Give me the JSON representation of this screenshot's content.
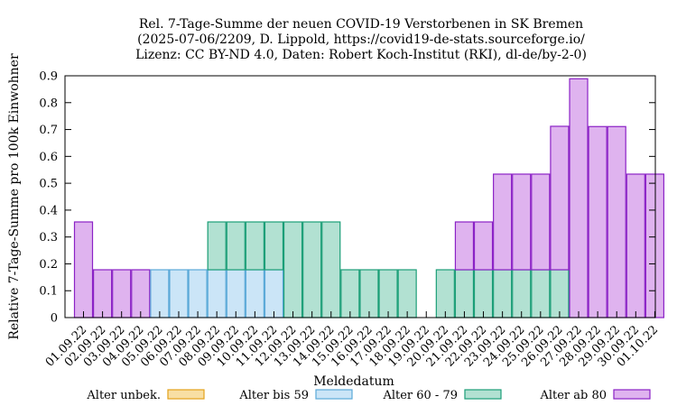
{
  "chart_data": {
    "type": "bar",
    "stacked": true,
    "title_lines": [
      "Rel. 7-Tage-Summe der neuen COVID-19 Verstorbenen in SK Bremen",
      "(2025-07-06/2209, D. Lippold, https://covid19-de-stats.sourceforge.io/",
      "Lizenz: CC BY-ND 4.0, Daten: Robert Koch-Institut (RKI), dl-de/by-2-0)"
    ],
    "xlabel": "Meldedatum",
    "ylabel": "Relative 7-Tage-Summe pro 100k Einwohner",
    "ylim": [
      0,
      0.9
    ],
    "yticks": [
      "0",
      "0.1",
      "0.2",
      "0.3",
      "0.4",
      "0.5",
      "0.6",
      "0.7",
      "0.8",
      "0.9"
    ],
    "categories": [
      "01.09.22",
      "02.09.22",
      "03.09.22",
      "04.09.22",
      "05.09.22",
      "06.09.22",
      "07.09.22",
      "08.09.22",
      "09.09.22",
      "10.09.22",
      "11.09.22",
      "12.09.22",
      "13.09.22",
      "14.09.22",
      "15.09.22",
      "16.09.22",
      "17.09.22",
      "18.09.22",
      "19.09.22",
      "20.09.22",
      "21.09.22",
      "22.09.22",
      "23.09.22",
      "24.09.22",
      "25.09.22",
      "26.09.22",
      "27.09.22",
      "28.09.22",
      "29.09.22",
      "30.09.22",
      "01.10.22"
    ],
    "series": [
      {
        "name": "Alter unbek.",
        "fill": "#f8dfa4",
        "stroke": "#e3a21a",
        "values": [
          0,
          0,
          0,
          0,
          0,
          0,
          0,
          0,
          0,
          0,
          0,
          0,
          0,
          0,
          0,
          0,
          0,
          0,
          0,
          0,
          0,
          0,
          0,
          0,
          0,
          0,
          0,
          0,
          0,
          0,
          0
        ]
      },
      {
        "name": "Alter bis 59",
        "fill": "#cbe5f7",
        "stroke": "#5aa9d8",
        "values": [
          0,
          0,
          0,
          0,
          0.178,
          0.178,
          0.178,
          0.178,
          0.178,
          0.178,
          0.178,
          0,
          0,
          0,
          0,
          0,
          0,
          0,
          0,
          0,
          0,
          0,
          0,
          0,
          0,
          0,
          0,
          0,
          0,
          0,
          0
        ]
      },
      {
        "name": "Alter 60 - 79",
        "fill": "#b2e1d2",
        "stroke": "#1b9e77",
        "values": [
          0,
          0,
          0,
          0,
          0,
          0,
          0,
          0.178,
          0.178,
          0.178,
          0.178,
          0.356,
          0.356,
          0.356,
          0.178,
          0.178,
          0.178,
          0.178,
          0,
          0.178,
          0.178,
          0.178,
          0.178,
          0.178,
          0.178,
          0.178,
          0,
          0,
          0,
          0,
          0
        ]
      },
      {
        "name": "Alter ab 80",
        "fill": "#dfb3ef",
        "stroke": "#8b22c6",
        "values": [
          0.356,
          0.178,
          0.178,
          0.178,
          0,
          0,
          0,
          0,
          0,
          0,
          0,
          0,
          0,
          0,
          0,
          0,
          0,
          0,
          0,
          0,
          0.178,
          0.178,
          0.356,
          0.356,
          0.356,
          0.534,
          0.889,
          0.711,
          0.711,
          0.534,
          0.534
        ]
      }
    ]
  }
}
